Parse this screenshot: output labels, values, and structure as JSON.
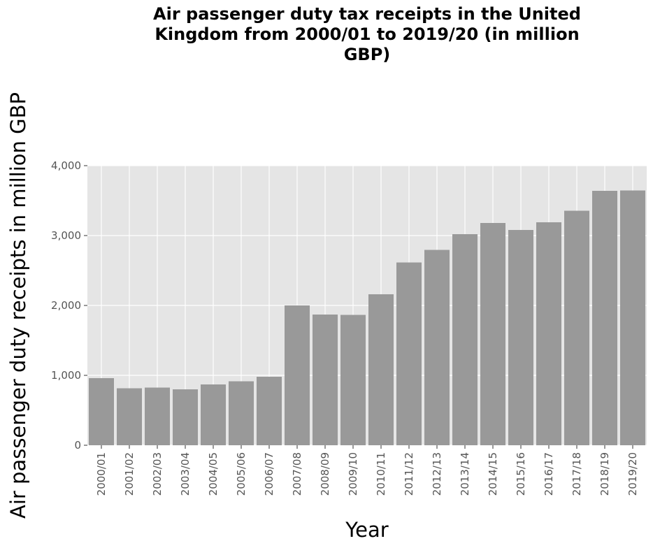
{
  "chart_data": {
    "type": "bar",
    "title": "Air passenger duty tax receipts in the United Kingdom from 2000/01 to 2019/20 (in million GBP)",
    "title_lines": [
      "Air passenger duty tax receipts in the United",
      "Kingdom from 2000/01 to 2019/20 (in million",
      "GBP)"
    ],
    "xlabel": "Year",
    "ylabel": "Air passenger duty receipts in million GBP",
    "ylim": [
      0,
      4000
    ],
    "yticks": [
      0,
      1000,
      2000,
      3000,
      4000
    ],
    "ytick_labels": [
      "0",
      "1,000",
      "2,000",
      "3,000",
      "4,000"
    ],
    "grid": true,
    "categories": [
      "2000/01",
      "2001/02",
      "2002/03",
      "2003/04",
      "2004/05",
      "2005/06",
      "2006/07",
      "2007/08",
      "2008/09",
      "2009/10",
      "2010/11",
      "2011/12",
      "2012/13",
      "2013/14",
      "2014/15",
      "2015/16",
      "2016/17",
      "2017/18",
      "2018/19",
      "2019/20"
    ],
    "values": [
      960,
      815,
      825,
      800,
      870,
      915,
      980,
      2000,
      1870,
      1865,
      2160,
      2615,
      2795,
      3020,
      3180,
      3080,
      3190,
      3355,
      3640,
      3645
    ],
    "colors": {
      "bar": "#999999",
      "panel": "#e5e5e5",
      "grid": "#ffffff",
      "text": "#555555"
    }
  }
}
